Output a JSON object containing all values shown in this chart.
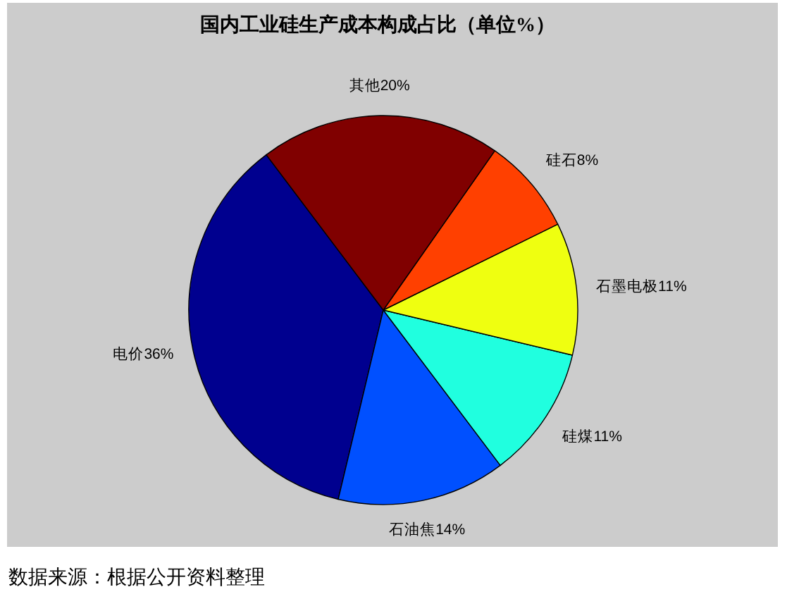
{
  "chart_data": {
    "type": "pie",
    "title": "国内工业硅生产成本构成占比（单位%）",
    "categories": [
      "电价",
      "石油焦",
      "硅煤",
      "石墨电极",
      "硅石",
      "其他"
    ],
    "values": [
      36,
      14,
      11,
      11,
      8,
      20
    ],
    "colors": [
      "#00008f",
      "#0050ff",
      "#20ffdf",
      "#efff10",
      "#ff4000",
      "#800000"
    ],
    "value_labels": [
      "36%",
      "14%",
      "11%",
      "11%",
      "8%",
      "20%"
    ],
    "annotations": [
      "数据来源：根据公开资料整理"
    ]
  }
}
